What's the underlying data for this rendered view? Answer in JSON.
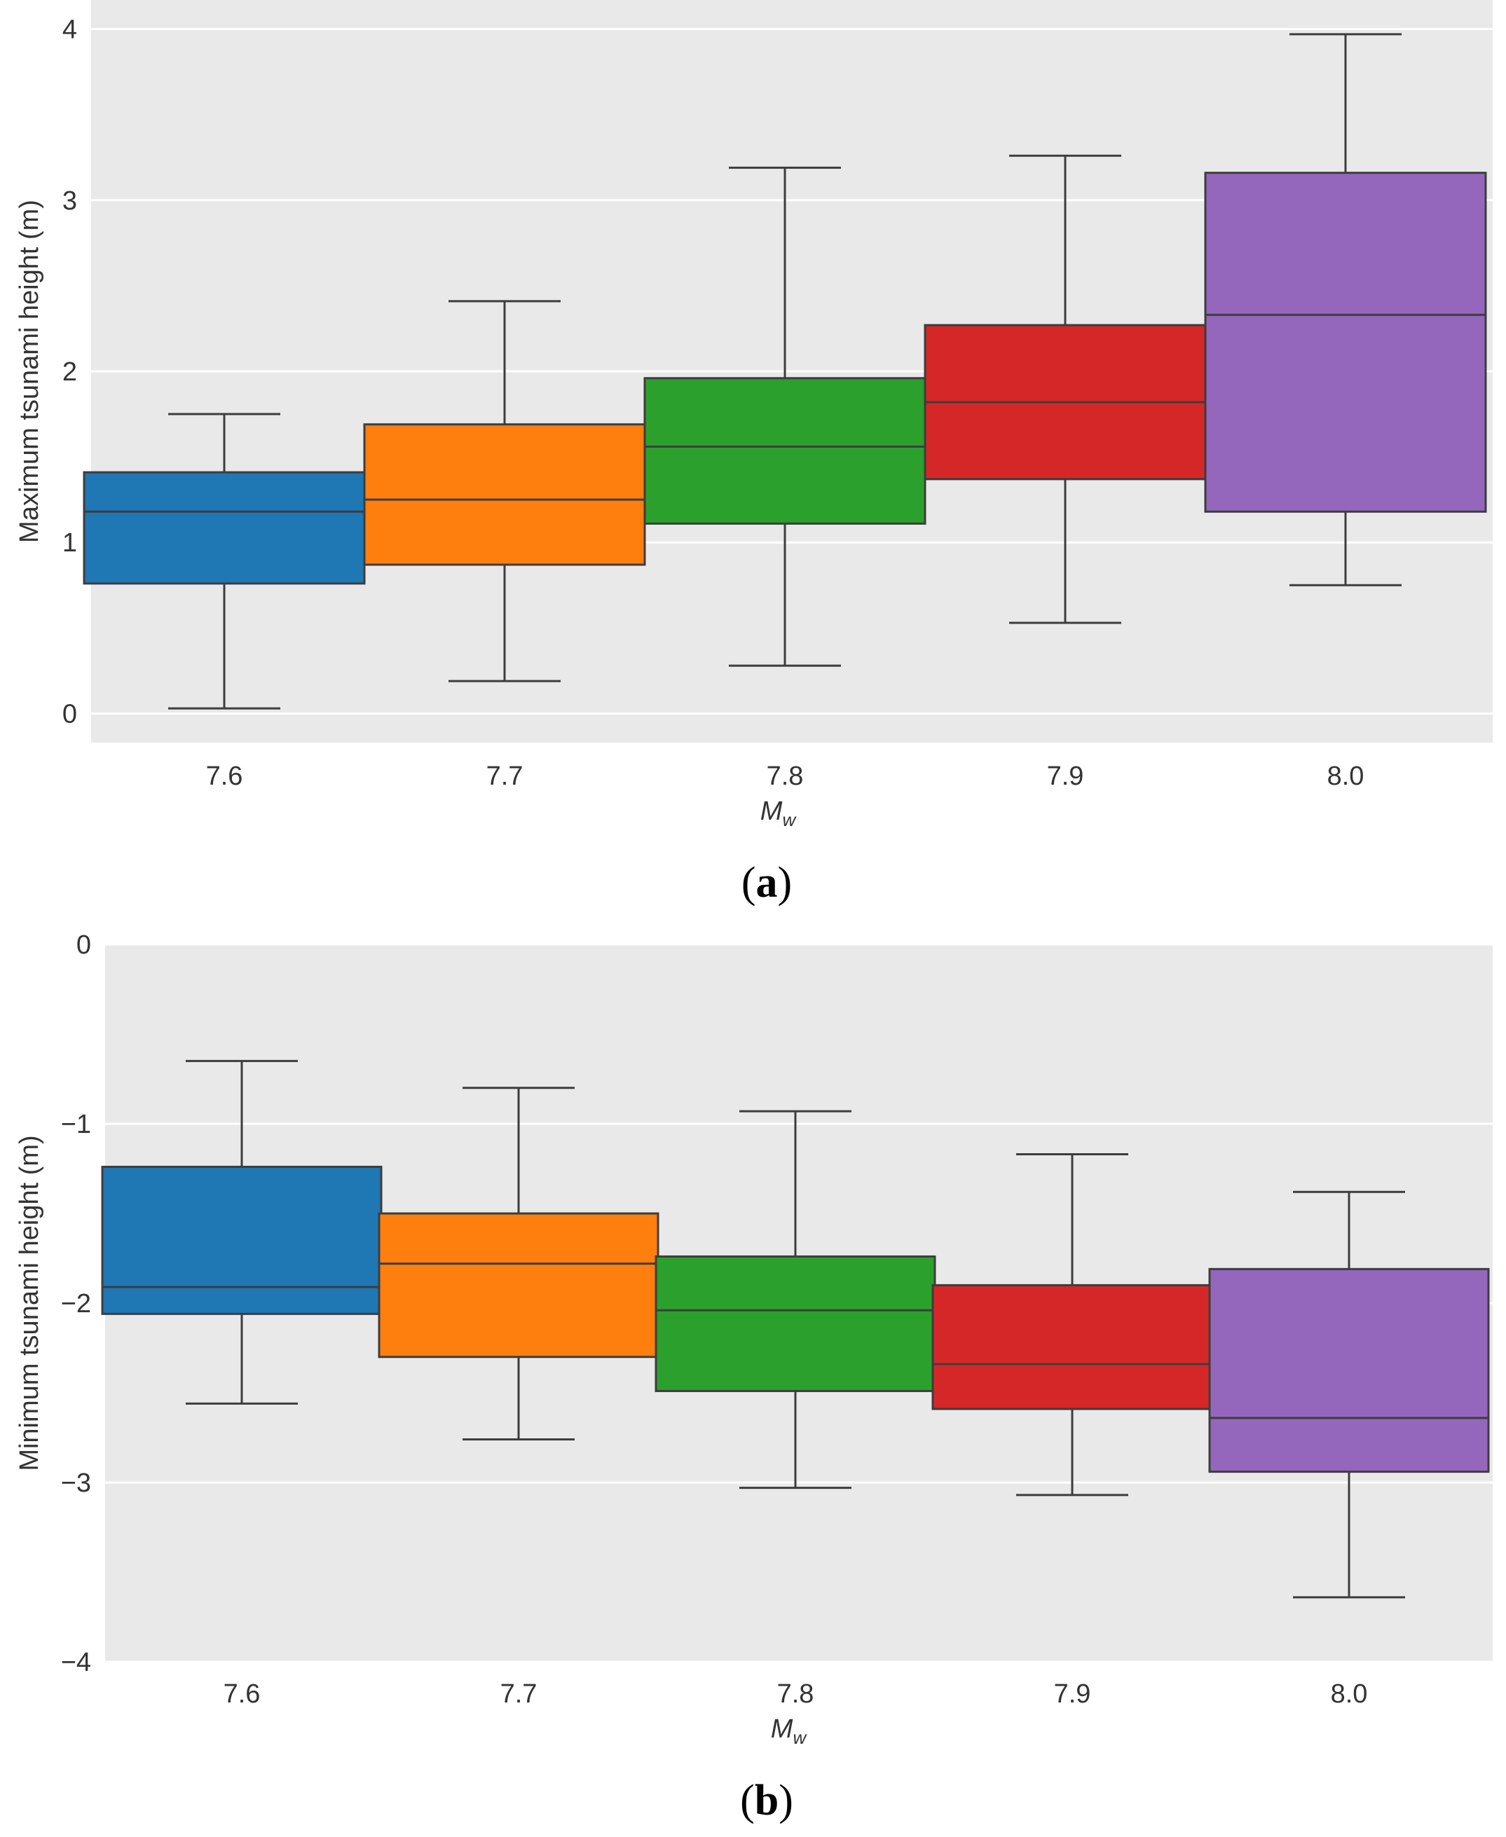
{
  "chart_data": [
    {
      "type": "box",
      "panel_label": "a",
      "title": "",
      "xlabel_main": "M",
      "xlabel_sub": "w",
      "ylabel": "Maximum tsunami height (m)",
      "ylim": [
        -0.17,
        4.17
      ],
      "yticks": [
        0,
        1,
        2,
        3,
        4
      ],
      "ytick_labels": [
        "0",
        "1",
        "2",
        "3",
        "4"
      ],
      "grid": true,
      "categories": [
        "7.6",
        "7.7",
        "7.8",
        "7.9",
        "8.0"
      ],
      "boxes": [
        {
          "whisker_low": 0.03,
          "q1": 0.76,
          "median": 1.18,
          "q3": 1.41,
          "whisker_high": 1.75,
          "color": "#1f77b4"
        },
        {
          "whisker_low": 0.19,
          "q1": 0.87,
          "median": 1.25,
          "q3": 1.69,
          "whisker_high": 2.41,
          "color": "#ff7f0e"
        },
        {
          "whisker_low": 0.28,
          "q1": 1.11,
          "median": 1.56,
          "q3": 1.96,
          "whisker_high": 3.19,
          "color": "#2ca02c"
        },
        {
          "whisker_low": 0.53,
          "q1": 1.37,
          "median": 1.82,
          "q3": 2.27,
          "whisker_high": 3.26,
          "color": "#d62728"
        },
        {
          "whisker_low": 0.75,
          "q1": 1.18,
          "median": 2.33,
          "q3": 3.16,
          "whisker_high": 3.97,
          "color": "#9467bd"
        }
      ]
    },
    {
      "type": "box",
      "panel_label": "b",
      "title": "",
      "xlabel_main": "M",
      "xlabel_sub": "w",
      "ylabel": "Minimum tsunami height (m)",
      "ylim": [
        -4,
        0
      ],
      "yticks": [
        0,
        -1,
        -2,
        -3,
        -4
      ],
      "ytick_labels": [
        "0",
        "−1",
        "−2",
        "−3",
        "−4"
      ],
      "grid": true,
      "categories": [
        "7.6",
        "7.7",
        "7.8",
        "7.9",
        "8.0"
      ],
      "boxes": [
        {
          "whisker_low": -2.56,
          "q1": -2.06,
          "median": -1.91,
          "q3": -1.24,
          "whisker_high": -0.65,
          "color": "#1f77b4"
        },
        {
          "whisker_low": -2.76,
          "q1": -2.3,
          "median": -1.78,
          "q3": -1.5,
          "whisker_high": -0.8,
          "color": "#ff7f0e"
        },
        {
          "whisker_low": -3.03,
          "q1": -2.49,
          "median": -2.04,
          "q3": -1.74,
          "whisker_high": -0.93,
          "color": "#2ca02c"
        },
        {
          "whisker_low": -3.07,
          "q1": -2.59,
          "median": -2.34,
          "q3": -1.9,
          "whisker_high": -1.17,
          "color": "#d62728"
        },
        {
          "whisker_low": -3.64,
          "q1": -2.94,
          "median": -2.64,
          "q3": -1.81,
          "whisker_high": -1.38,
          "color": "#9467bd"
        }
      ]
    }
  ]
}
